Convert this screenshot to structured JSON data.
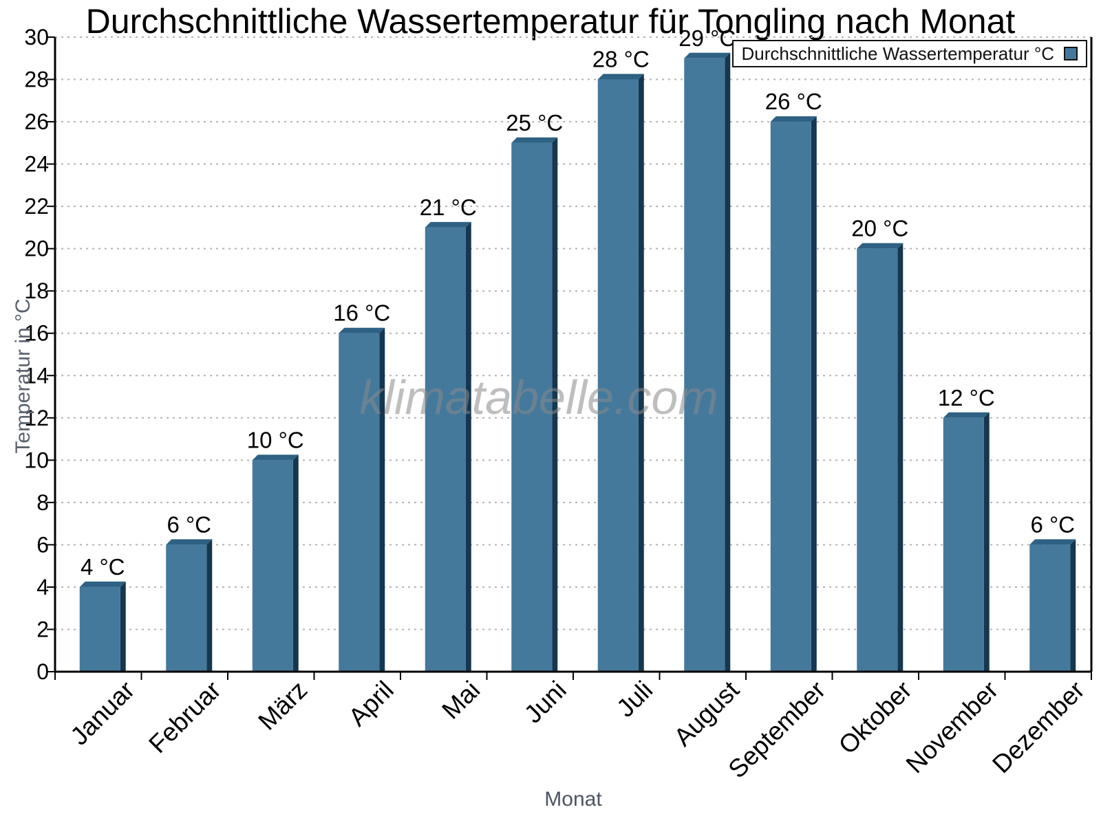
{
  "title": "Durchschnittliche Wassertemperatur für Tongling nach Monat",
  "watermark": "klimatabelle.com",
  "legend": {
    "label": "Durchschnittliche Wassertemperatur °C"
  },
  "axes": {
    "y_title": "Temperatur in °C",
    "x_title": "Monat"
  },
  "chart_data": {
    "type": "bar",
    "title": "Durchschnittliche Wassertemperatur für Tongling nach Monat",
    "categories": [
      "Januar",
      "Februar",
      "März",
      "April",
      "Mai",
      "Juni",
      "Juli",
      "August",
      "September",
      "Oktober",
      "November",
      "Dezember"
    ],
    "series": [
      {
        "name": "Durchschnittliche Wassertemperatur °C",
        "values": [
          4,
          6,
          10,
          16,
          21,
          25,
          28,
          29,
          26,
          20,
          12,
          6
        ]
      }
    ],
    "value_labels": [
      "4 °C",
      "6 °C",
      "10 °C",
      "16 °C",
      "21 °C",
      "25 °C",
      "28 °C",
      "29 °C",
      "26 °C",
      "20 °C",
      "12 °C",
      "6 °C"
    ],
    "unit": "°C",
    "xlabel": "Monat",
    "ylabel": "Temperatur in °C",
    "ylim": [
      0,
      30
    ],
    "ytick_step": 2,
    "grid": "horizontal-dotted",
    "legend_position": "top-right",
    "bar_style": "3d",
    "colors": {
      "bar_face": "#44799C",
      "bar_top": "#2E6183",
      "bar_side": "#15374F",
      "grid": "#b3b3b3",
      "axis": "#000000",
      "tick_label": "#000000",
      "axis_title": "#59616c",
      "watermark": "#8a8a8a"
    }
  }
}
